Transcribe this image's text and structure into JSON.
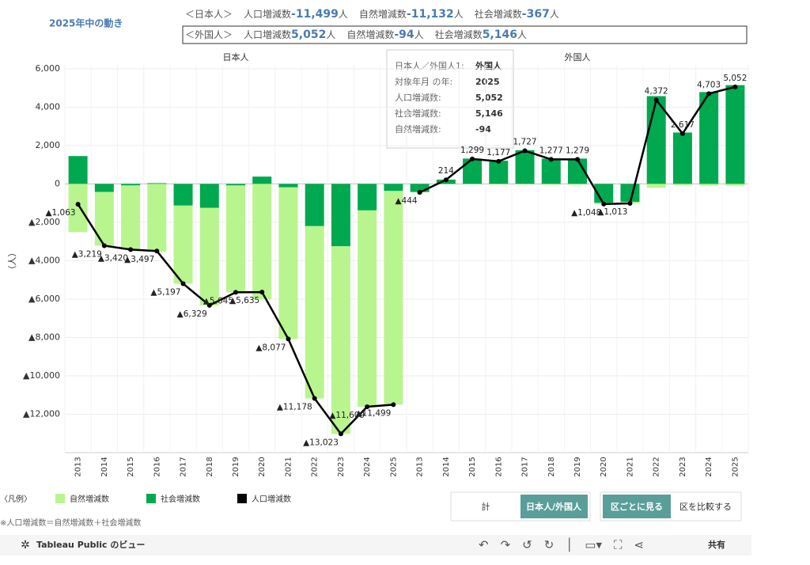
{
  "header": {
    "title": "2025年中の動き",
    "rows": [
      {
        "group": "＜日本人＞",
        "items": [
          {
            "label": "人口増減数",
            "value": "-11,499",
            "unit": "人"
          },
          {
            "label": "自然増減数",
            "value": "-11,132",
            "unit": "人"
          },
          {
            "label": "社会増減数",
            "value": "-367",
            "unit": "人"
          }
        ]
      },
      {
        "group": "＜外国人＞",
        "items": [
          {
            "label": "人口増減数",
            "value": "5,052",
            "unit": "人"
          },
          {
            "label": "自然増減数",
            "value": "-94",
            "unit": "人"
          },
          {
            "label": "社会増減数",
            "value": "5,146",
            "unit": "人"
          }
        ]
      }
    ]
  },
  "chart_data": [
    {
      "type": "combo",
      "panel": "日本人",
      "y_label": "（人）",
      "categories": [
        "2013",
        "2014",
        "2015",
        "2016",
        "2017",
        "2018",
        "2019",
        "2020",
        "2021",
        "2022",
        "2023",
        "2024",
        "2025"
      ],
      "series": [
        {
          "name": "自然増減数",
          "color": "#b9f58f",
          "kind": "bar",
          "values": [
            -2513,
            -2799,
            -3340,
            -3537,
            -4067,
            -5079,
            -5565,
            -6015,
            -7897,
            -8978,
            -9773,
            -10229,
            -11132
          ]
        },
        {
          "name": "社会増減数",
          "color": "#00a850",
          "kind": "bar",
          "values": [
            1450,
            -420,
            -80,
            40,
            -1130,
            -1250,
            -80,
            380,
            -180,
            -2200,
            -3250,
            -1380,
            -367
          ]
        },
        {
          "name": "人口増減数",
          "color": "#000000",
          "kind": "line",
          "values": [
            -1063,
            -3219,
            -3420,
            -3497,
            -5197,
            -6329,
            -5645,
            -5635,
            -8077,
            -11178,
            -13023,
            -11609,
            -11499
          ],
          "value_labels": [
            "▲1,063",
            "▲3,219",
            "▲3,420",
            "▲3,497",
            "▲5,197",
            "▲6,329",
            "▲5,645",
            "▲5,635",
            "▲8,077",
            "▲11,178",
            "▲13,023",
            "▲11,609",
            "▲11,499"
          ]
        }
      ],
      "ylim": [
        -14000,
        6200
      ],
      "yticks": [
        {
          "value": -12000,
          "label": "▲12,000"
        },
        {
          "value": -10000,
          "label": "▲10,000"
        },
        {
          "value": -8000,
          "label": "▲8,000"
        },
        {
          "value": -6000,
          "label": "▲6,000"
        },
        {
          "value": -4000,
          "label": "▲4,000"
        },
        {
          "value": -2000,
          "label": "▲2,000"
        },
        0,
        {
          "value": 2000,
          "label": "2,000"
        },
        {
          "value": 4000,
          "label": "4,000"
        },
        {
          "value": 6000,
          "label": "6,000"
        }
      ],
      "grid": true
    },
    {
      "type": "combo",
      "panel": "外国人",
      "categories": [
        "2013",
        "2014",
        "2015",
        "2016",
        "2017",
        "2018",
        "2019",
        "2020",
        "2021",
        "2022",
        "2023",
        "2024",
        "2025"
      ],
      "series": [
        {
          "color": "#b9f58f",
          "kind": "bar",
          "values": [
            -20,
            -10,
            -20,
            -30,
            -30,
            -40,
            -40,
            -60,
            -80,
            -200,
            -60,
            -80,
            -94
          ]
        },
        {
          "color": "#00a850",
          "kind": "bar",
          "values": [
            -424,
            224,
            1319,
            1207,
            1757,
            1317,
            1319,
            -988,
            -933,
            4572,
            2677,
            4783,
            5146
          ]
        },
        {
          "color": "#000000",
          "kind": "line",
          "values": [
            -444,
            214,
            1299,
            1177,
            1727,
            1277,
            1279,
            -1048,
            -1013,
            4372,
            2617,
            4703,
            5052
          ],
          "value_labels": [
            "▲444",
            "214",
            "1,299",
            "1,177",
            "1,727",
            "1,277",
            "1,279",
            "▲1,048",
            "▲1,013",
            "4,372",
            "2,617",
            "4,703",
            "5,052"
          ]
        }
      ],
      "ylim": [
        -14000,
        6200
      ],
      "grid": true
    }
  ],
  "tooltip": [
    {
      "label": "日本人／外国人1:",
      "value": "外国人"
    },
    {
      "label": "対象年月 の年:",
      "value": "2025"
    },
    {
      "label": "人口増減数:",
      "value": "5,052"
    },
    {
      "label": "社会増減数:",
      "value": "5,146"
    },
    {
      "label": "自然増減数:",
      "value": "-94"
    }
  ],
  "legend_title": "〈凡例〉",
  "note": "※人口増減数＝自然増減数＋社会増減数",
  "buttons": {
    "group1": [
      "計",
      "日本人/外国人"
    ],
    "group2": [
      "区ごとに見る",
      "区を比較する"
    ]
  },
  "toolbar": {
    "brand": "Tableau Public のビュー",
    "share": "共有"
  }
}
